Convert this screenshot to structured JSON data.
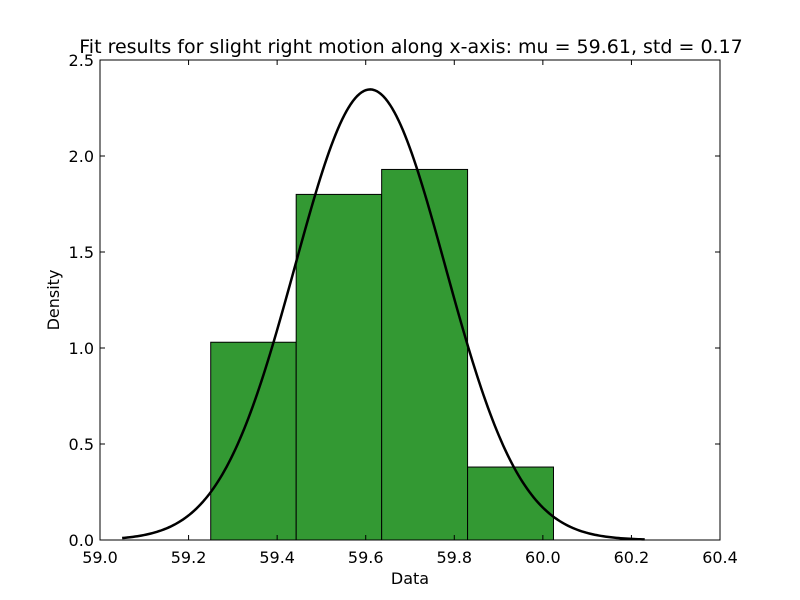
{
  "chart_data": {
    "type": "bar",
    "title": "Fit results for slight right motion along x-axis: mu = 59.61,  std = 0.17",
    "xlabel": "Data",
    "ylabel": "Density",
    "xlim": [
      59.0,
      60.4
    ],
    "ylim": [
      0.0,
      2.5
    ],
    "xticks": [
      "59.0",
      "59.2",
      "59.4",
      "59.6",
      "59.8",
      "60.0",
      "60.2",
      "60.4"
    ],
    "yticks": [
      "0.0",
      "0.5",
      "1.0",
      "1.5",
      "2.0",
      "2.5"
    ],
    "histogram": {
      "bin_edges": [
        59.25,
        59.443,
        59.636,
        59.83,
        60.024
      ],
      "values": [
        1.03,
        1.8,
        1.93,
        0.38
      ],
      "color": "#339933"
    },
    "fit_curve": {
      "mu": 59.61,
      "std": 0.17,
      "x_range": [
        59.05,
        60.23
      ],
      "color": "#000000"
    },
    "grid": false
  }
}
